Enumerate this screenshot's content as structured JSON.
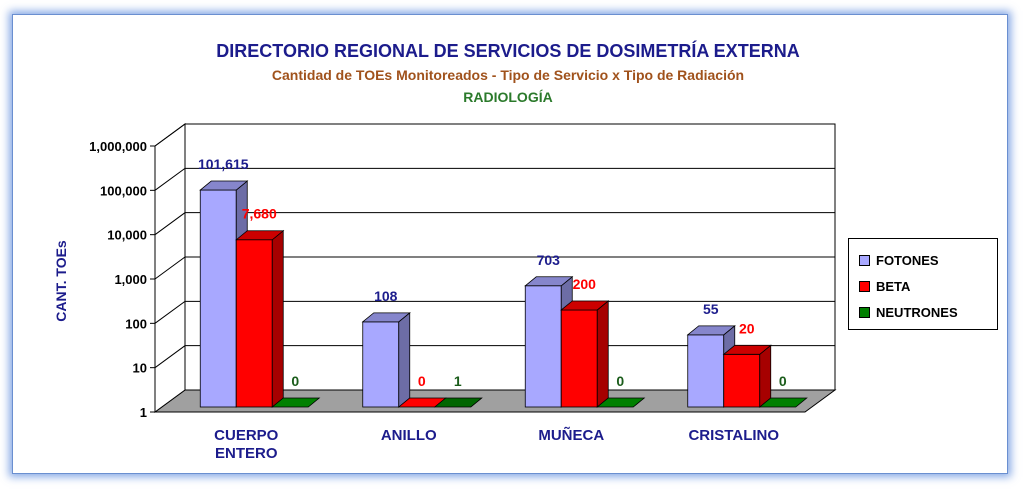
{
  "chart_data": {
    "type": "bar",
    "title": "DIRECTORIO REGIONAL DE SERVICIOS DE DOSIMETRÍA EXTERNA",
    "subtitle": "Cantidad de TOEs Monitoreados - Tipo de Servicio x Tipo de Radiación",
    "subtitle2": "RADIOLOGÍA",
    "ylabel": "CANT. TOEs",
    "xlabel": "",
    "y_scale": "log",
    "ylim": [
      1,
      1000000
    ],
    "y_ticks": [
      "1",
      "10",
      "100",
      "1,000",
      "10,000",
      "100,000",
      "1,000,000"
    ],
    "categories": [
      [
        "CUERPO",
        "ENTERO"
      ],
      [
        "ANILLO"
      ],
      [
        "MUÑECA"
      ],
      [
        "CRISTALINO"
      ]
    ],
    "series": [
      {
        "name": "FOTONES",
        "values": [
          101615,
          108,
          703,
          55
        ],
        "labels": [
          "101,615",
          "108",
          "703",
          "55"
        ],
        "color": "#a8a8ff",
        "label_color": "#1c1c8c"
      },
      {
        "name": "BETA",
        "values": [
          7680,
          0,
          200,
          20
        ],
        "labels": [
          "7,680",
          "0",
          "200",
          "20"
        ],
        "color": "#ff0000",
        "label_color": "#ff0000"
      },
      {
        "name": "NEUTRONES",
        "values": [
          0,
          1,
          0,
          0
        ],
        "labels": [
          "0",
          "1",
          "0",
          "0"
        ],
        "color": "#008000",
        "label_color": "#1a5c1a"
      }
    ],
    "grid": true,
    "legend_position": "right"
  },
  "colors": {
    "title": "#1c1c8c",
    "subtitle": "#a0521c",
    "subtitle2": "#2b7a2b",
    "ylabel": "#1c1c8c",
    "floor": "#a0a0a0",
    "wall": "#ffffff"
  }
}
